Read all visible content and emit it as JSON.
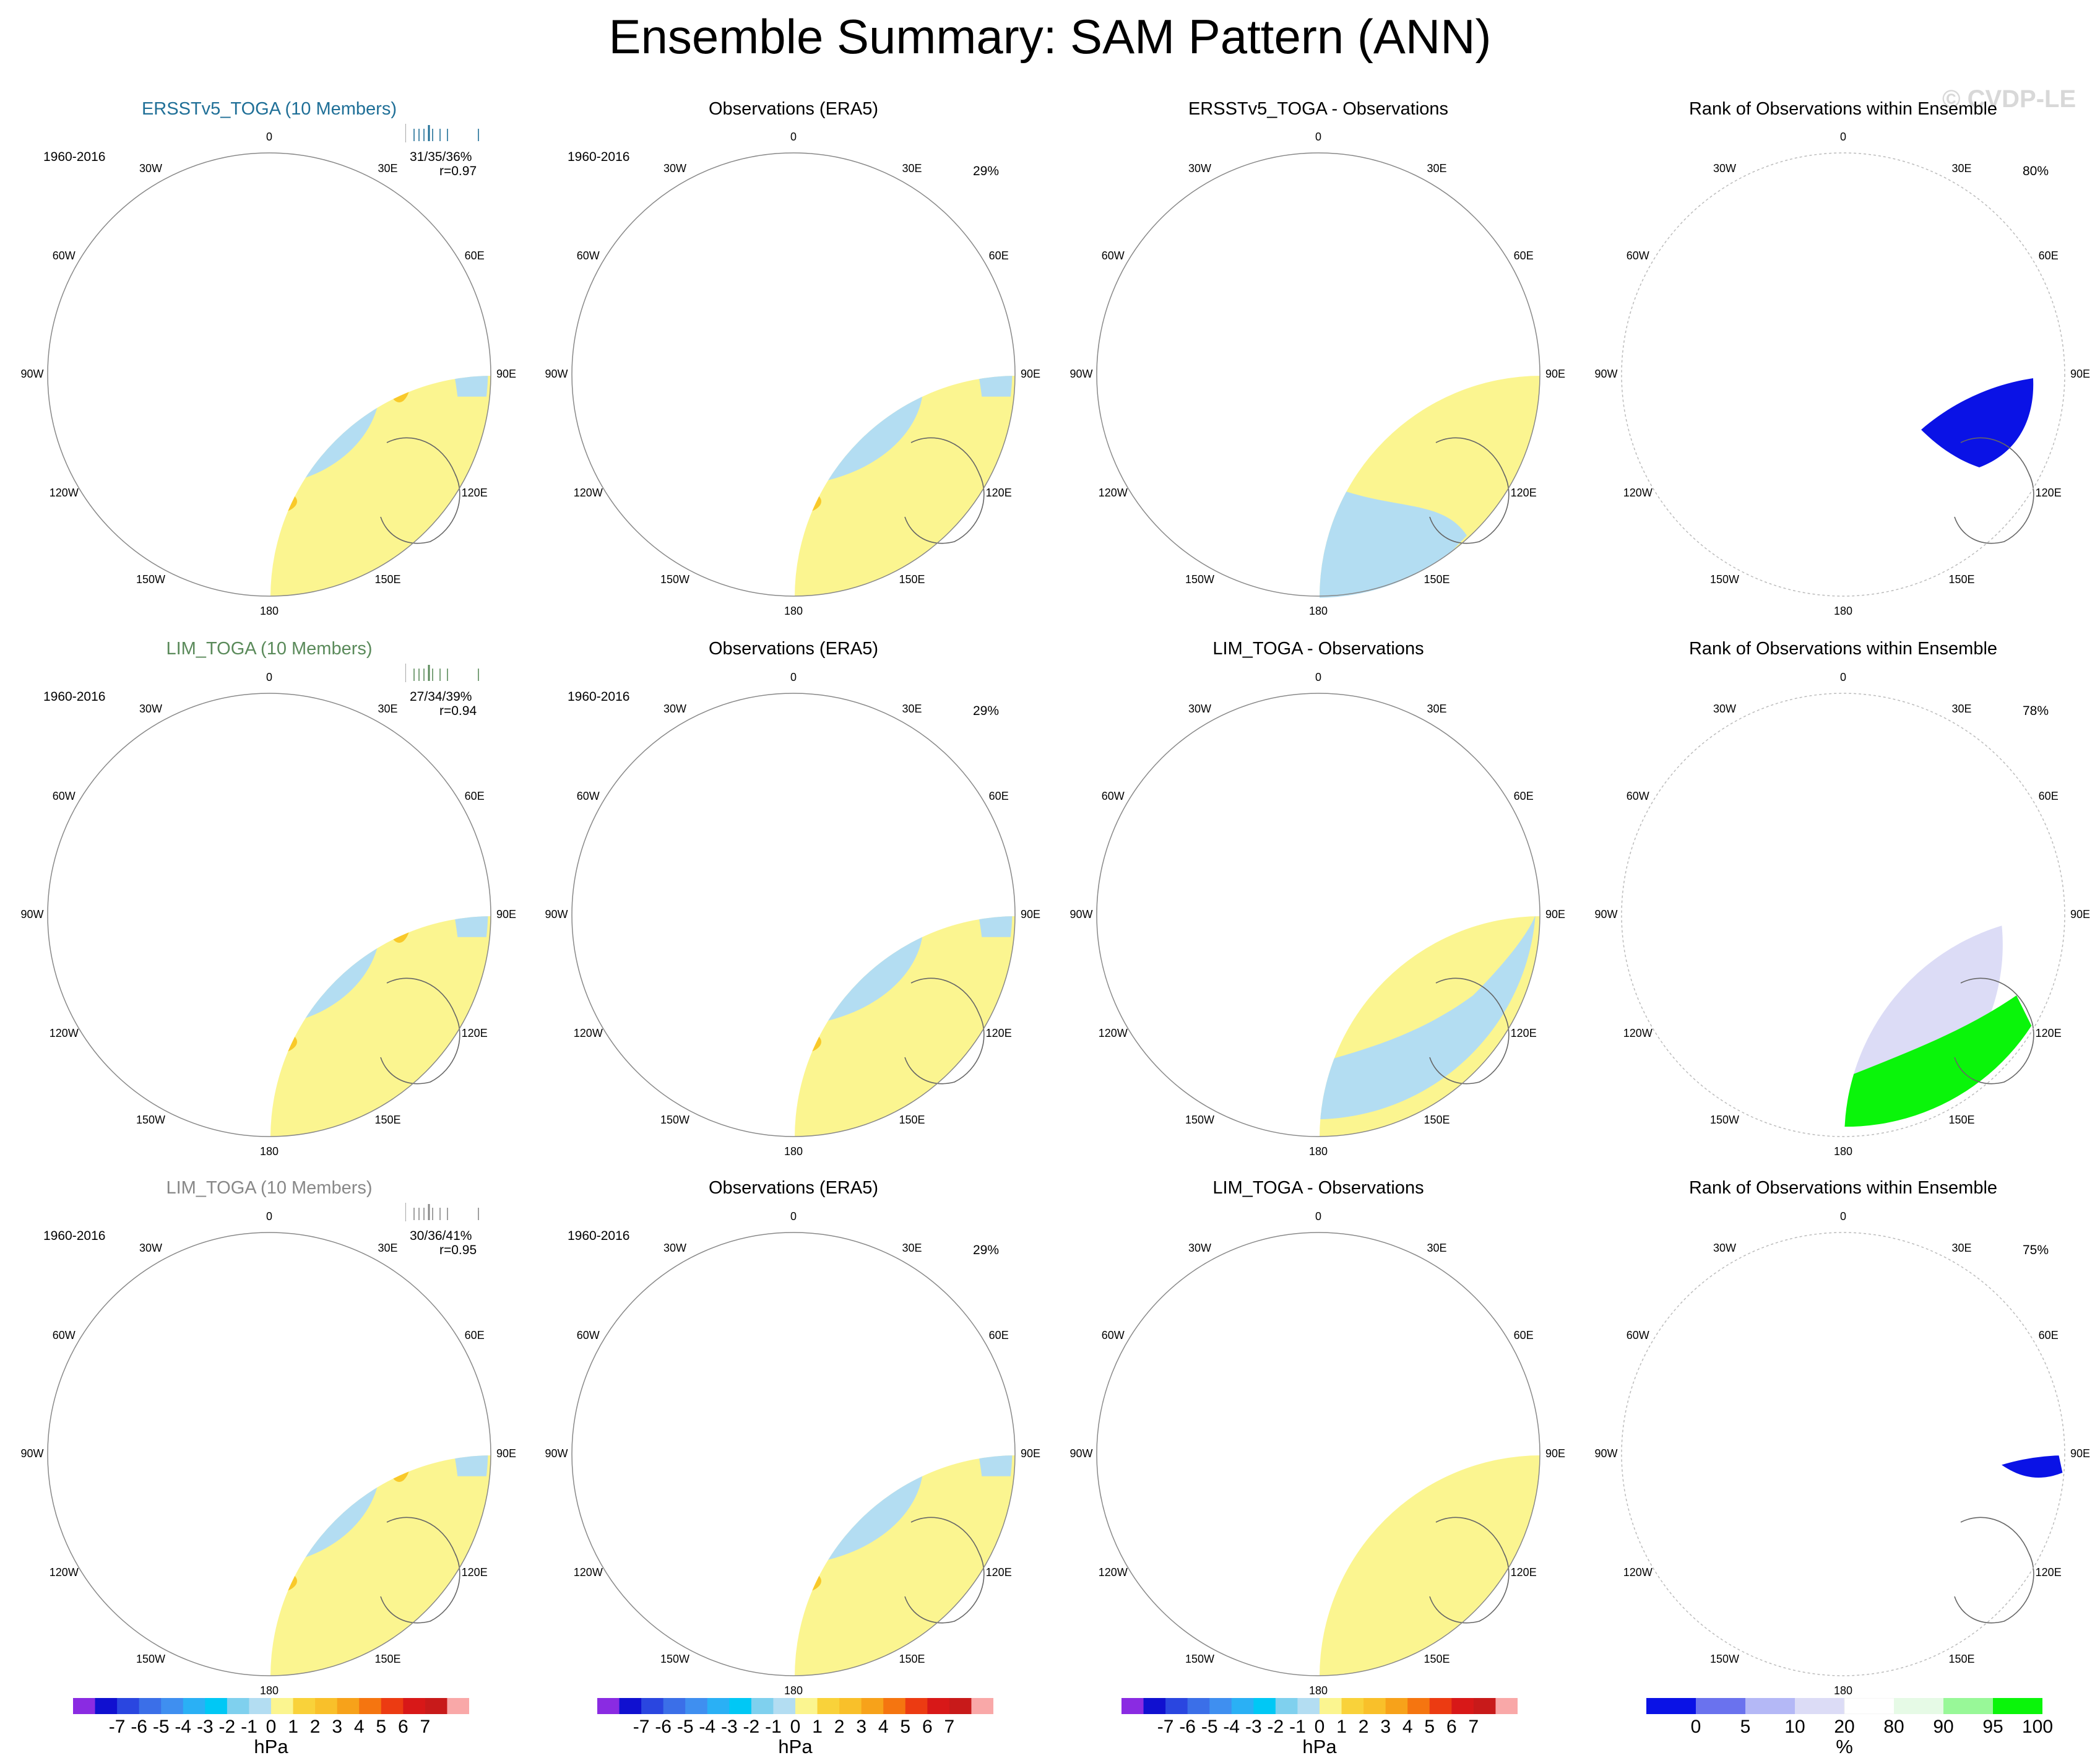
{
  "title": "Ensemble Summary: SAM Pattern (ANN)",
  "copyright": "© CVDP-LE",
  "colors": {
    "ocean_base": "#fbf590",
    "neg1": "#b3ddf2",
    "neg2": "#6ec3ea",
    "neg3": "#00b5ef",
    "pos1": "#f9c92a",
    "rank_blue": "#0a12e6",
    "rank_lav": "#dcdcf6",
    "rank_green": "#0af50a",
    "rank_lightgreen": "#e6fae6"
  },
  "rows": [
    {
      "model": {
        "title": "ERSSTv5_TOGA (10 Members)",
        "period": "1960-2016",
        "stats": "31/35/36%",
        "corr": "r=0.97"
      },
      "obs": {
        "title": "Observations (ERA5)",
        "period": "1960-2016",
        "pct": "29%"
      },
      "diff": {
        "title": "ERSSTv5_TOGA - Observations"
      },
      "rank": {
        "title": "Rank of Observations within Ensemble",
        "pct": "80%"
      }
    },
    {
      "model": {
        "title": "LIM_TOGA (10 Members)",
        "period": "1960-2016",
        "stats": "27/34/39%",
        "corr": "r=0.94"
      },
      "obs": {
        "title": "Observations (ERA5)",
        "period": "1960-2016",
        "pct": "29%"
      },
      "diff": {
        "title": "LIM_TOGA - Observations"
      },
      "rank": {
        "title": "Rank of Observations within Ensemble",
        "pct": "78%"
      }
    },
    {
      "model": {
        "title": "LIM_TOGA (10 Members)",
        "period": "1960-2016",
        "stats": "30/36/41%",
        "corr": "r=0.95"
      },
      "obs": {
        "title": "Observations (ERA5)",
        "period": "1960-2016",
        "pct": "29%"
      },
      "diff": {
        "title": "LIM_TOGA - Observations"
      },
      "rank": {
        "title": "Rank of Observations within Ensemble",
        "pct": "75%"
      }
    }
  ],
  "longitude_labels": [
    "0",
    "30E",
    "60E",
    "90E",
    "120E",
    "150E",
    "180",
    "150W",
    "120W",
    "90W",
    "60W",
    "30W"
  ],
  "colorbar_hpa": {
    "labels": [
      "-7",
      "-6",
      "-5",
      "-4",
      "-3",
      "-2",
      "-1",
      "0",
      "1",
      "2",
      "3",
      "4",
      "5",
      "6",
      "7"
    ],
    "colors": [
      "#8a2be2",
      "#1010d0",
      "#2a46e0",
      "#3b6fe8",
      "#3f8ff0",
      "#2ab0f5",
      "#00c8f5",
      "#7fd0ee",
      "#b3ddf2",
      "#fbf590",
      "#f9d23a",
      "#f9c02a",
      "#f7a21a",
      "#f57510",
      "#ec3b12",
      "#d81818",
      "#c81a1a",
      "#f9a8a8"
    ],
    "unit": "hPa"
  },
  "colorbar_rank": {
    "labels": [
      "0",
      "5",
      "10",
      "20",
      "80",
      "90",
      "95",
      "100"
    ],
    "colors": [
      "#0a12e6",
      "#6a72ee",
      "#b4b8f6",
      "#dcdcf6",
      "#ffffff",
      "#e6fae6",
      "#98f898",
      "#0af50a"
    ],
    "unit": "%"
  }
}
